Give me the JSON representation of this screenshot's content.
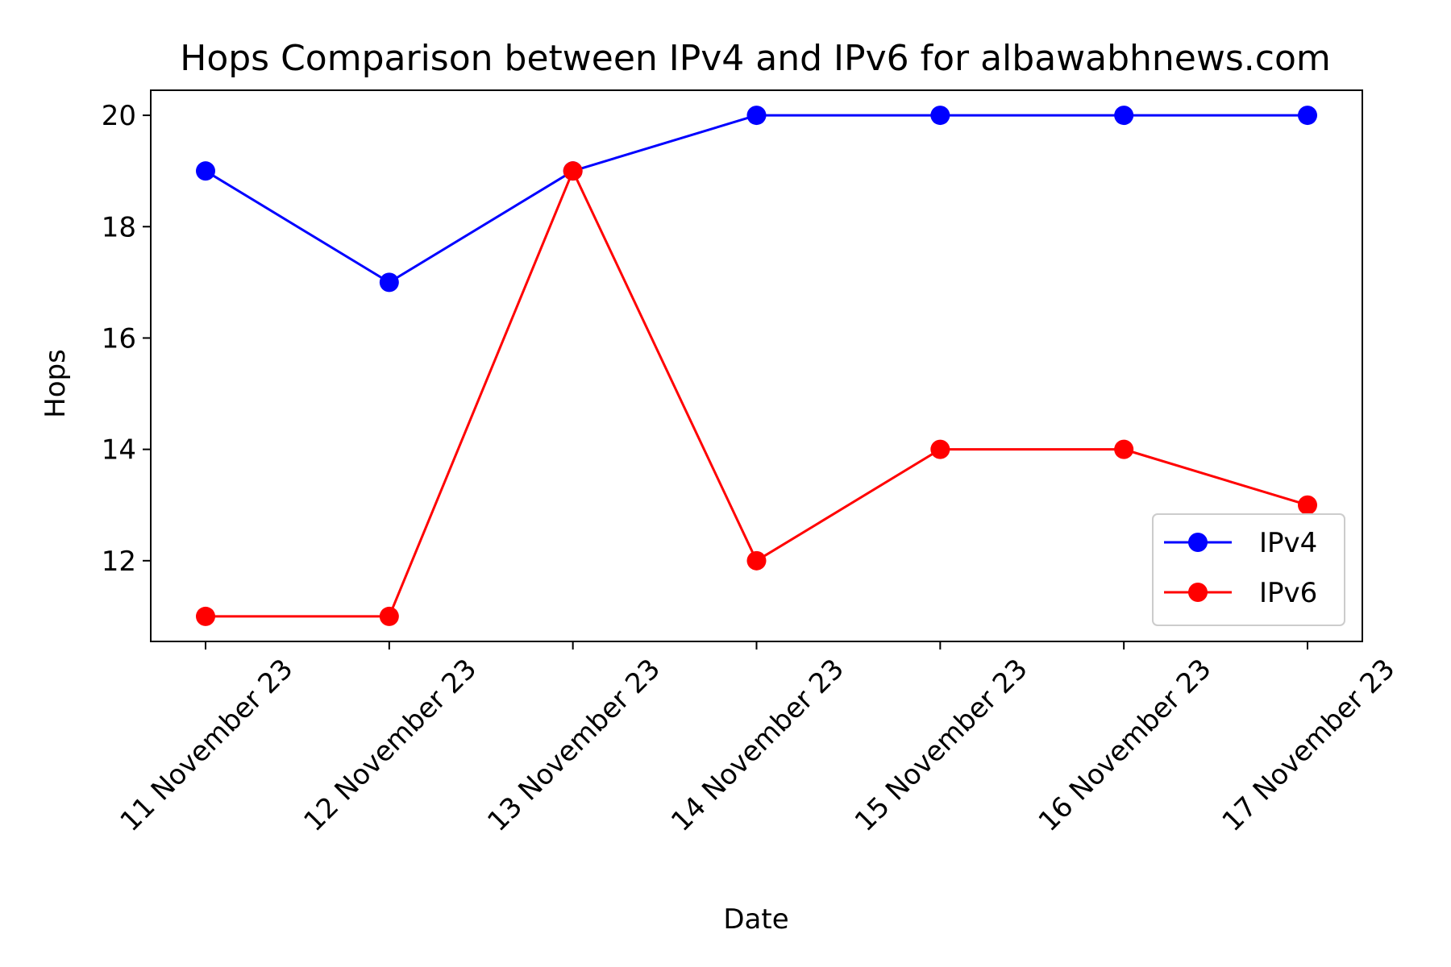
{
  "chart_data": {
    "type": "line",
    "title": "Hops Comparison between IPv4 and IPv6 for albawabhnews.com",
    "xlabel": "Date",
    "ylabel": "Hops",
    "categories": [
      "11 November 23",
      "12 November 23",
      "13 November 23",
      "14 November 23",
      "15 November 23",
      "16 November 23",
      "17 November 23"
    ],
    "yticks": [
      12,
      14,
      16,
      18,
      20
    ],
    "ylim": [
      10.55,
      20.45
    ],
    "grid": false,
    "legend_position": "lower-right",
    "series": [
      {
        "name": "IPv4",
        "color": "#0000ff",
        "marker": "circle",
        "values": [
          19,
          17,
          19,
          20,
          20,
          20,
          20
        ]
      },
      {
        "name": "IPv6",
        "color": "#ff0000",
        "marker": "circle",
        "values": [
          11,
          11,
          19,
          12,
          14,
          14,
          13
        ]
      }
    ]
  }
}
